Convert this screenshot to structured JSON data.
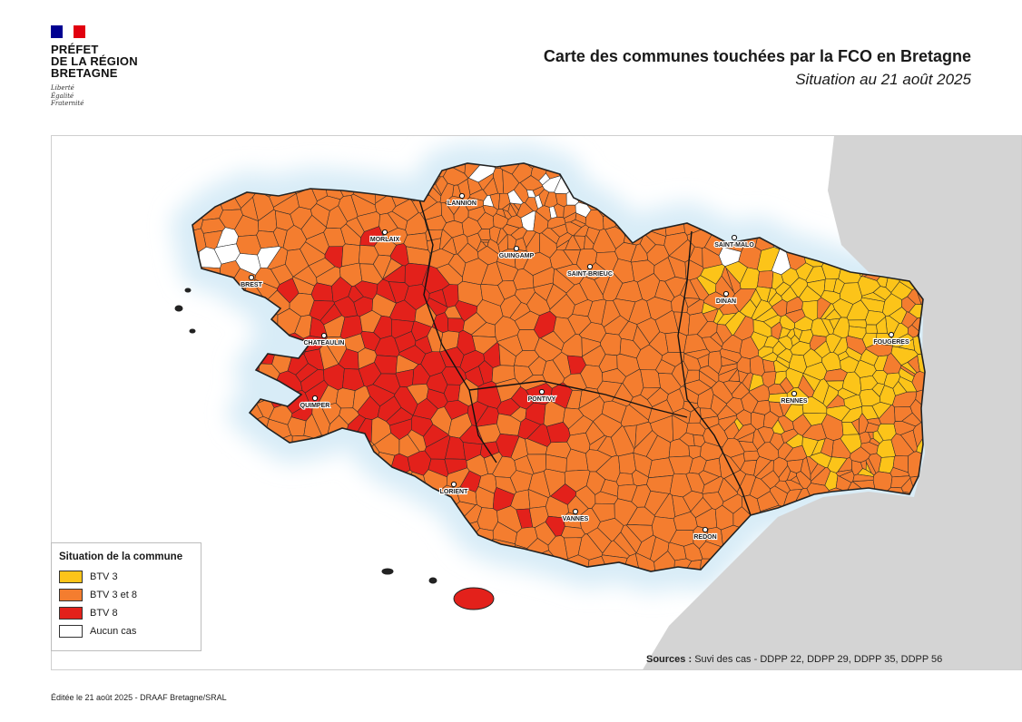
{
  "header": {
    "logo_lines": [
      "PRÉFET",
      "DE LA RÉGION",
      "BRETAGNE"
    ],
    "motto_lines": [
      "Liberté",
      "Égalité",
      "Fraternité"
    ],
    "flag_colors": [
      "#000091",
      "#ffffff",
      "#e1000f"
    ]
  },
  "title": "Carte des communes touchées par la FCO en Bretagne",
  "subtitle": "Situation au 21 août 2025",
  "map": {
    "colors": {
      "btv3": "#fcc419",
      "btv3_8": "#f47d2f",
      "btv8": "#e3211b",
      "none": "#ffffff",
      "sea": "#d8ecf7",
      "neighbor_land": "#d4d4d4",
      "border": "#2a2a2a"
    },
    "cities": [
      {
        "name": "LANNION"
      },
      {
        "name": "MORLAIX"
      },
      {
        "name": "GUINGAMP"
      },
      {
        "name": "SAINT-MALO"
      },
      {
        "name": "SAINT-BRIEUC"
      },
      {
        "name": "BREST"
      },
      {
        "name": "DINAN"
      },
      {
        "name": "CHATEAULIN"
      },
      {
        "name": "FOUGERES"
      },
      {
        "name": "QUIMPER"
      },
      {
        "name": "PONTIVY"
      },
      {
        "name": "RENNES"
      },
      {
        "name": "LORIENT"
      },
      {
        "name": "VANNES"
      },
      {
        "name": "REDON"
      }
    ]
  },
  "legend": {
    "title": "Situation de la commune",
    "items": [
      {
        "label": "BTV 3",
        "color": "#fcc419"
      },
      {
        "label": "BTV 3 et 8",
        "color": "#f47d2f"
      },
      {
        "label": "BTV 8",
        "color": "#e3211b"
      },
      {
        "label": "Aucun cas",
        "color": "#ffffff"
      }
    ]
  },
  "sources": {
    "label": "Sources :",
    "text": " Suvi des cas - DDPP 22, DDPP 29, DDPP 35, DDPP 56"
  },
  "footer": "Éditée le 21 août 2025 - DRAAF Bretagne/SRAL"
}
